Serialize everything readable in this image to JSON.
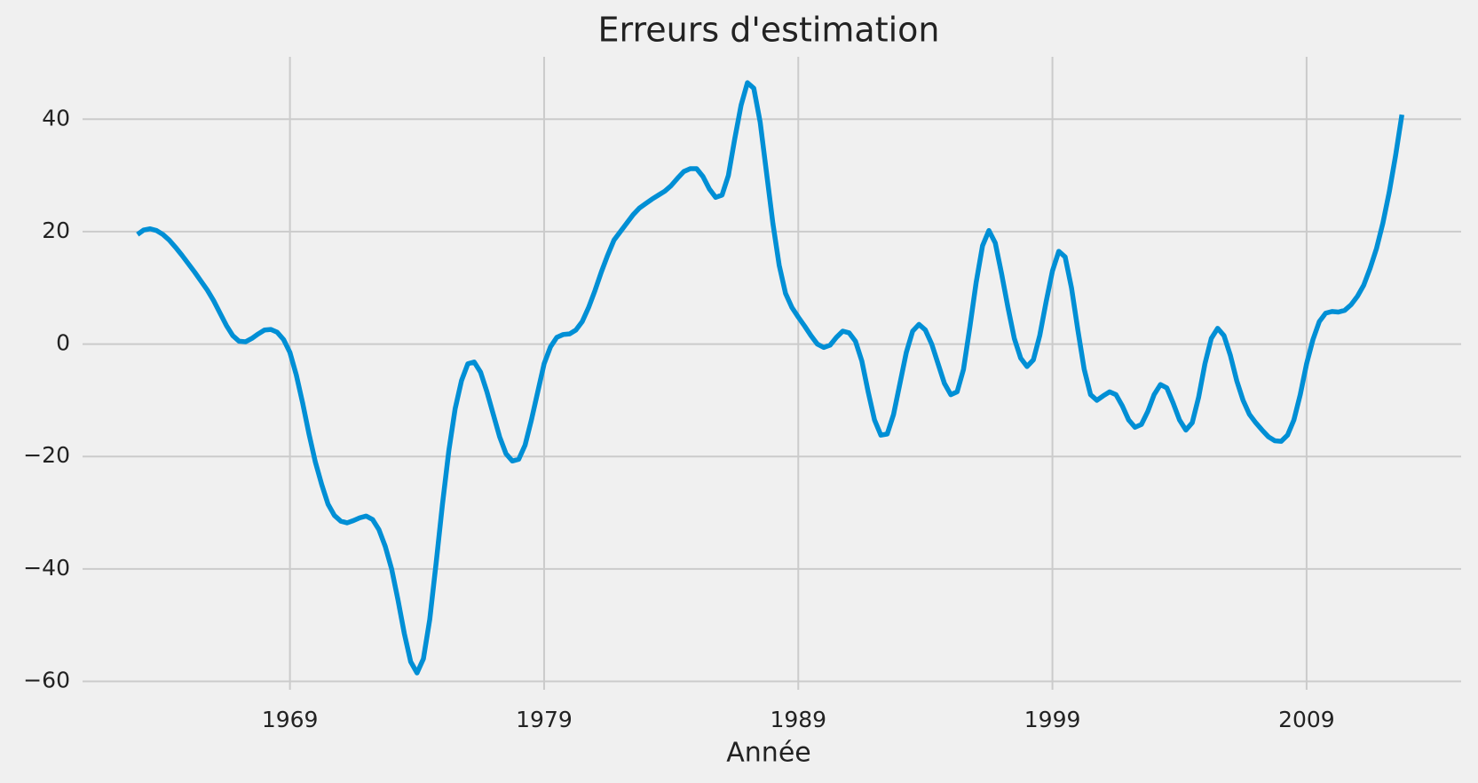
{
  "chart_data": {
    "type": "line",
    "title": "Erreurs d'estimation",
    "x_label": "Année",
    "grid": true,
    "color": "#008fd5",
    "xlim": [
      1960.84,
      2015.08
    ],
    "ylim": [
      -61.5,
      51.1
    ],
    "xticks": [
      1969,
      1979,
      1989,
      1999,
      2009
    ],
    "yticks": [
      {
        "value": -60,
        "label": "−60"
      },
      {
        "value": -40,
        "label": "−40"
      },
      {
        "value": -20,
        "label": "−20"
      },
      0,
      20,
      40
    ],
    "x": [
      1963,
      1963.25,
      1963.5,
      1963.75,
      1964,
      1964.25,
      1964.5,
      1964.75,
      1965,
      1965.25,
      1965.5,
      1965.75,
      1966,
      1966.25,
      1966.5,
      1966.75,
      1967,
      1967.25,
      1967.5,
      1967.75,
      1968,
      1968.25,
      1968.5,
      1968.75,
      1969,
      1969.25,
      1969.5,
      1969.75,
      1970,
      1970.25,
      1970.5,
      1970.75,
      1971,
      1971.25,
      1971.5,
      1971.75,
      1972,
      1972.25,
      1972.5,
      1972.75,
      1973,
      1973.25,
      1973.5,
      1973.75,
      1974,
      1974.25,
      1974.5,
      1974.75,
      1975,
      1975.25,
      1975.5,
      1975.75,
      1976,
      1976.25,
      1976.5,
      1976.75,
      1977,
      1977.25,
      1977.5,
      1977.75,
      1978,
      1978.25,
      1978.5,
      1978.75,
      1979,
      1979.25,
      1979.5,
      1979.75,
      1980,
      1980.25,
      1980.5,
      1980.75,
      1981,
      1981.25,
      1981.5,
      1981.75,
      1982,
      1982.25,
      1982.5,
      1982.75,
      1983,
      1983.25,
      1983.5,
      1983.75,
      1984,
      1984.25,
      1984.5,
      1984.75,
      1985,
      1985.25,
      1985.5,
      1985.75,
      1986,
      1986.25,
      1986.5,
      1986.75,
      1987,
      1987.25,
      1987.5,
      1987.75,
      1988,
      1988.25,
      1988.5,
      1988.75,
      1989,
      1989.25,
      1989.5,
      1989.75,
      1990,
      1990.25,
      1990.5,
      1990.75,
      1991,
      1991.25,
      1991.5,
      1991.75,
      1992,
      1992.25,
      1992.5,
      1992.75,
      1993,
      1993.25,
      1993.5,
      1993.75,
      1994,
      1994.25,
      1994.5,
      1994.75,
      1995,
      1995.25,
      1995.5,
      1995.75,
      1996,
      1996.25,
      1996.5,
      1996.75,
      1997,
      1997.25,
      1997.5,
      1997.75,
      1998,
      1998.25,
      1998.5,
      1998.75,
      1999,
      1999.25,
      1999.5,
      1999.75,
      2000,
      2000.25,
      2000.5,
      2000.75,
      2001,
      2001.25,
      2001.5,
      2001.75,
      2002,
      2002.25,
      2002.5,
      2002.75,
      2003,
      2003.25,
      2003.5,
      2003.75,
      2004,
      2004.25,
      2004.5,
      2004.75,
      2005,
      2005.25,
      2005.5,
      2005.75,
      2006,
      2006.25,
      2006.5,
      2006.75,
      2007,
      2007.25,
      2007.5,
      2007.75,
      2008,
      2008.25,
      2008.5,
      2008.75,
      2009,
      2009.25,
      2009.5,
      2009.75,
      2010,
      2010.25,
      2010.5,
      2010.75,
      2011,
      2011.25,
      2011.5,
      2011.75,
      2012,
      2012.25,
      2012.5,
      2012.75
    ],
    "values": [
      19.5,
      20.3,
      20.5,
      20.2,
      19.5,
      18.5,
      17.2,
      15.8,
      14.3,
      12.8,
      11.2,
      9.6,
      7.7,
      5.5,
      3.3,
      1.5,
      0.5,
      0.4,
      1.0,
      1.8,
      2.5,
      2.6,
      2.1,
      0.8,
      -1.5,
      -5.5,
      -10.5,
      -16,
      -21,
      -25,
      -28.5,
      -30.5,
      -31.5,
      -31.8,
      -31.4,
      -30.9,
      -30.6,
      -31.2,
      -33,
      -36,
      -40,
      -45.5,
      -51.5,
      -56.5,
      -58.5,
      -56,
      -49,
      -39,
      -28.5,
      -19,
      -11.5,
      -6.5,
      -3.5,
      -3.2,
      -5,
      -8.5,
      -12.5,
      -16.5,
      -19.5,
      -20.8,
      -20.5,
      -18,
      -13.5,
      -8.5,
      -3.5,
      -0.5,
      1.2,
      1.7,
      1.8,
      2.5,
      4,
      6.5,
      9.5,
      12.8,
      15.8,
      18.5,
      20,
      21.5,
      23,
      24.2,
      25,
      25.8,
      26.5,
      27.2,
      28.2,
      29.5,
      30.7,
      31.2,
      31.2,
      29.8,
      27.6,
      26.1,
      26.5,
      30,
      36.5,
      42.5,
      46.5,
      45.5,
      39.5,
      30.5,
      21.5,
      14,
      9,
      6.5,
      4.8,
      3.2,
      1.5,
      0,
      -0.6,
      -0.2,
      1.2,
      2.3,
      2.0,
      0.5,
      -3,
      -8.5,
      -13.5,
      -16.2,
      -16,
      -12.5,
      -7,
      -1.5,
      2.3,
      3.5,
      2.5,
      0,
      -3.5,
      -7,
      -9,
      -8.5,
      -4.5,
      3,
      11,
      17.5,
      20.2,
      18,
      12.5,
      6.5,
      1,
      -2.5,
      -4,
      -2.8,
      1.5,
      7.5,
      13,
      16.5,
      15.5,
      10,
      2.5,
      -4.5,
      -9,
      -10,
      -9.2,
      -8.5,
      -9,
      -11,
      -13.5,
      -14.8,
      -14.3,
      -12,
      -9,
      -7.2,
      -7.8,
      -10.5,
      -13.5,
      -15.3,
      -14,
      -9.5,
      -3.5,
      1,
      2.8,
      1.5,
      -2,
      -6.5,
      -10,
      -12.5,
      -14,
      -15.3,
      -16.5,
      -17.2,
      -17.3,
      -16.2,
      -13.5,
      -9,
      -3.5,
      0.8,
      4,
      5.5,
      5.8,
      5.7,
      6,
      7,
      8.5,
      10.5,
      13.5,
      17,
      21.5,
      27,
      33.5,
      40.8
    ]
  }
}
